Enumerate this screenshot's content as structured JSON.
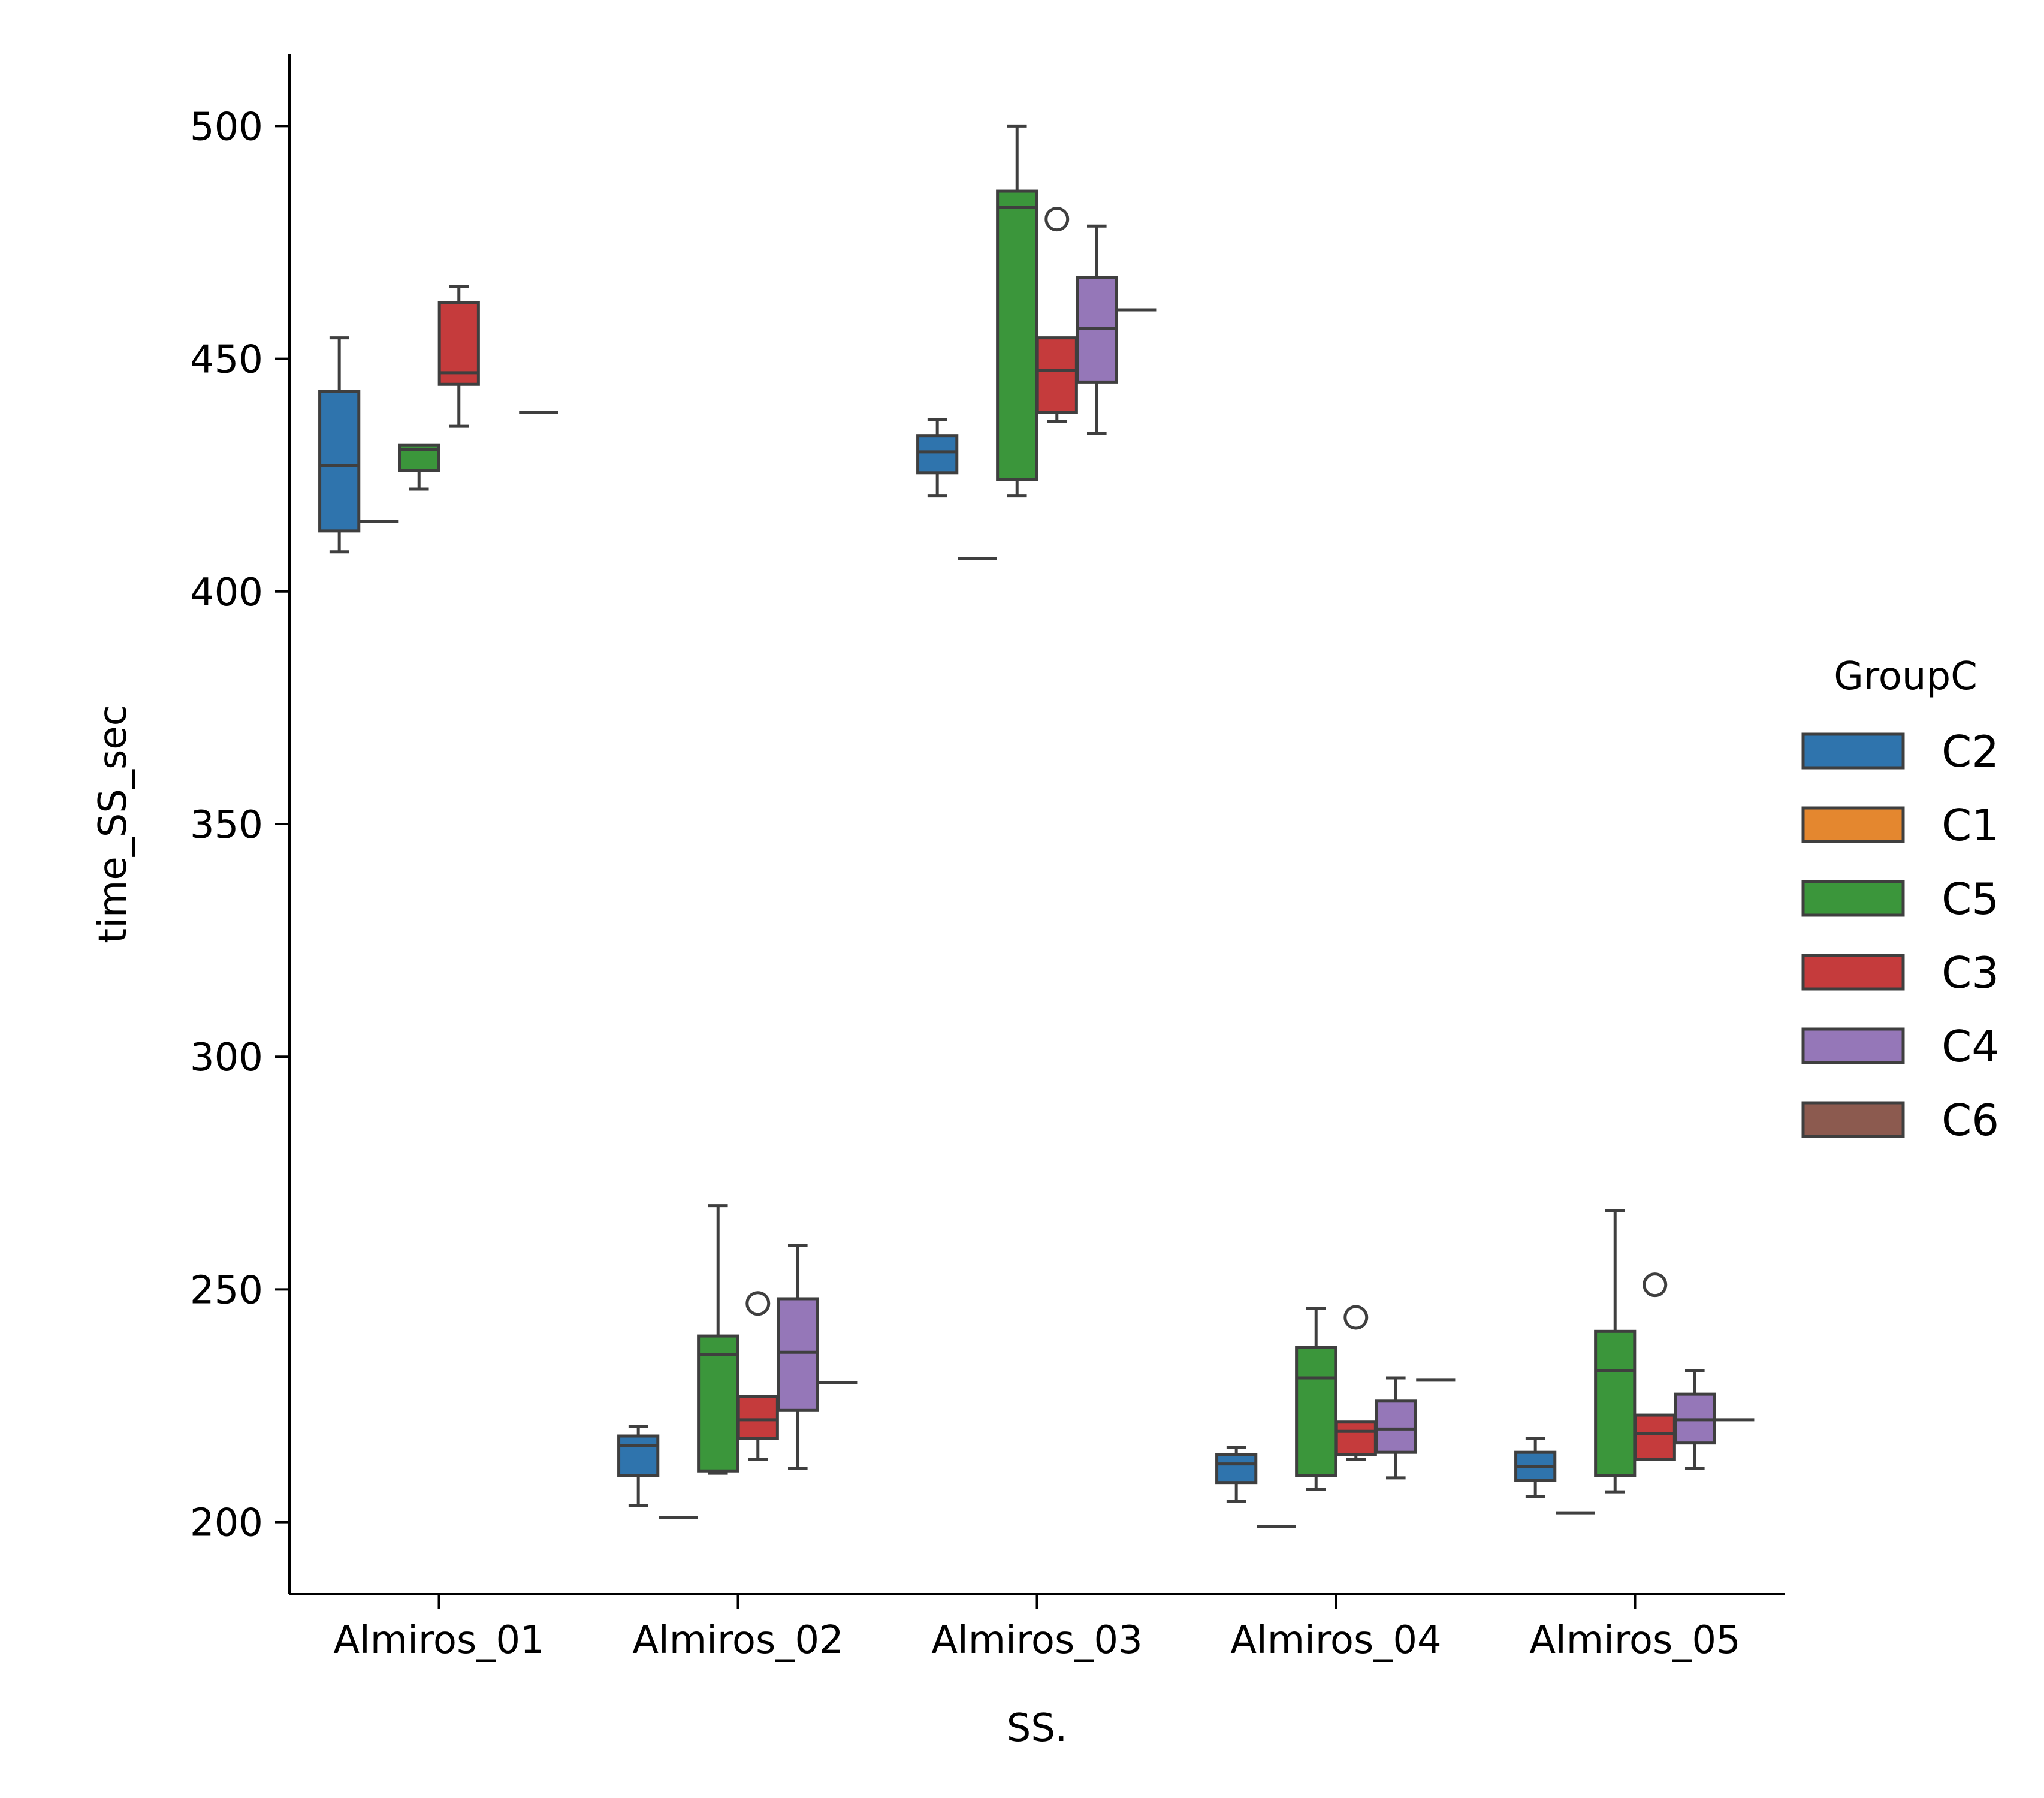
{
  "chart_data": {
    "type": "box",
    "xlabel": "SS.",
    "ylabel": "time_SS_sec",
    "ylim": [
      184.5,
      515.5
    ],
    "yticks": [
      200,
      250,
      300,
      350,
      400,
      450,
      500
    ],
    "categories": [
      "Almiros_01",
      "Almiros_02",
      "Almiros_03",
      "Almiros_04",
      "Almiros_05"
    ],
    "grid": false,
    "legend": {
      "title": "GroupC",
      "position": "right",
      "entries": [
        {
          "name": "C2",
          "color": "#2f74ad"
        },
        {
          "name": "C1",
          "color": "#e4872f"
        },
        {
          "name": "C5",
          "color": "#3b963b"
        },
        {
          "name": "C3",
          "color": "#c53b3c"
        },
        {
          "name": "C4",
          "color": "#9577b8"
        },
        {
          "name": "C6",
          "color": "#8c5a4f"
        }
      ]
    },
    "series": [
      {
        "name": "C2",
        "boxes": [
          {
            "category": "Almiros_01",
            "q1": 413,
            "median": 427,
            "q3": 443,
            "whisker_low": 408.5,
            "whisker_high": 454.5,
            "outliers": []
          },
          {
            "category": "Almiros_02",
            "q1": 210,
            "median": 216.5,
            "q3": 218.5,
            "whisker_low": 203.5,
            "whisker_high": 220.5,
            "outliers": []
          },
          {
            "category": "Almiros_03",
            "q1": 425.5,
            "median": 430,
            "q3": 433.5,
            "whisker_low": 420.5,
            "whisker_high": 437,
            "outliers": []
          },
          {
            "category": "Almiros_04",
            "q1": 208.5,
            "median": 212.5,
            "q3": 214.5,
            "whisker_low": 204.5,
            "whisker_high": 216,
            "outliers": []
          },
          {
            "category": "Almiros_05",
            "q1": 209,
            "median": 212,
            "q3": 215,
            "whisker_low": 205.5,
            "whisker_high": 218,
            "outliers": []
          }
        ]
      },
      {
        "name": "C1",
        "boxes": [
          {
            "category": "Almiros_01",
            "q1": 415,
            "median": 415,
            "q3": 415,
            "whisker_low": 415,
            "whisker_high": 415,
            "outliers": []
          },
          {
            "category": "Almiros_02",
            "q1": 201,
            "median": 201,
            "q3": 201,
            "whisker_low": 201,
            "whisker_high": 201,
            "outliers": []
          },
          {
            "category": "Almiros_03",
            "q1": 407,
            "median": 407,
            "q3": 407,
            "whisker_low": 407,
            "whisker_high": 407,
            "outliers": []
          },
          {
            "category": "Almiros_04",
            "q1": 199,
            "median": 199,
            "q3": 199,
            "whisker_low": 199,
            "whisker_high": 199,
            "outliers": []
          },
          {
            "category": "Almiros_05",
            "q1": 202,
            "median": 202,
            "q3": 202,
            "whisker_low": 202,
            "whisker_high": 202,
            "outliers": []
          }
        ]
      },
      {
        "name": "C5",
        "boxes": [
          {
            "category": "Almiros_01",
            "q1": 426,
            "median": 430.5,
            "q3": 431.5,
            "whisker_low": 422,
            "whisker_high": 431.5,
            "outliers": []
          },
          {
            "category": "Almiros_02",
            "q1": 211,
            "median": 236,
            "q3": 240,
            "whisker_low": 210.5,
            "whisker_high": 268,
            "outliers": []
          },
          {
            "category": "Almiros_03",
            "q1": 424,
            "median": 482.5,
            "q3": 486,
            "whisker_low": 420.5,
            "whisker_high": 500,
            "outliers": []
          },
          {
            "category": "Almiros_04",
            "q1": 210,
            "median": 231,
            "q3": 237.5,
            "whisker_low": 207,
            "whisker_high": 246,
            "outliers": []
          },
          {
            "category": "Almiros_05",
            "q1": 210,
            "median": 232.5,
            "q3": 241,
            "whisker_low": 206.5,
            "whisker_high": 267,
            "outliers": []
          }
        ]
      },
      {
        "name": "C3",
        "boxes": [
          {
            "category": "Almiros_01",
            "q1": 444.5,
            "median": 447,
            "q3": 462,
            "whisker_low": 435.5,
            "whisker_high": 465.5,
            "outliers": []
          },
          {
            "category": "Almiros_02",
            "q1": 218,
            "median": 222,
            "q3": 227,
            "whisker_low": 213.5,
            "whisker_high": 227,
            "outliers": [
              247
            ]
          },
          {
            "category": "Almiros_03",
            "q1": 438.5,
            "median": 447.5,
            "q3": 454.5,
            "whisker_low": 436.5,
            "whisker_high": 454.5,
            "outliers": [
              480
            ]
          },
          {
            "category": "Almiros_04",
            "q1": 214.5,
            "median": 219.5,
            "q3": 221.5,
            "whisker_low": 213.5,
            "whisker_high": 221.5,
            "outliers": [
              244
            ]
          },
          {
            "category": "Almiros_05",
            "q1": 213.5,
            "median": 219,
            "q3": 223,
            "whisker_low": 213.5,
            "whisker_high": 223,
            "outliers": [
              251
            ]
          }
        ]
      },
      {
        "name": "C4",
        "boxes": [
          {
            "category": "Almiros_02",
            "q1": 224,
            "median": 236.5,
            "q3": 248,
            "whisker_low": 211.5,
            "whisker_high": 259.5,
            "outliers": []
          },
          {
            "category": "Almiros_03",
            "q1": 445,
            "median": 456.5,
            "q3": 467.5,
            "whisker_low": 434,
            "whisker_high": 478.5,
            "outliers": []
          },
          {
            "category": "Almiros_04",
            "q1": 215,
            "median": 220,
            "q3": 226,
            "whisker_low": 209.5,
            "whisker_high": 231,
            "outliers": []
          },
          {
            "category": "Almiros_05",
            "q1": 217,
            "median": 222,
            "q3": 227.5,
            "whisker_low": 211.5,
            "whisker_high": 232.5,
            "outliers": []
          }
        ]
      },
      {
        "name": "C6",
        "boxes": [
          {
            "category": "Almiros_01",
            "q1": 438.5,
            "median": 438.5,
            "q3": 438.5,
            "whisker_low": 438.5,
            "whisker_high": 438.5,
            "outliers": []
          },
          {
            "category": "Almiros_02",
            "q1": 230,
            "median": 230,
            "q3": 230,
            "whisker_low": 230,
            "whisker_high": 230,
            "outliers": []
          },
          {
            "category": "Almiros_03",
            "q1": 460.5,
            "median": 460.5,
            "q3": 460.5,
            "whisker_low": 460.5,
            "whisker_high": 460.5,
            "outliers": []
          },
          {
            "category": "Almiros_04",
            "q1": 230.5,
            "median": 230.5,
            "q3": 230.5,
            "whisker_low": 230.5,
            "whisker_high": 230.5,
            "outliers": []
          },
          {
            "category": "Almiros_05",
            "q1": 222,
            "median": 222,
            "q3": 222,
            "whisker_low": 222,
            "whisker_high": 222,
            "outliers": []
          }
        ]
      }
    ]
  }
}
